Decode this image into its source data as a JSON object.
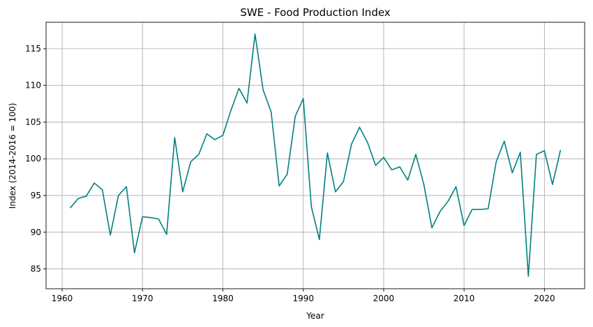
{
  "chart_data": {
    "type": "line",
    "title": "SWE - Food Production Index",
    "xlabel": "Year",
    "ylabel": "Index (2014-2016 = 100)",
    "xlim": [
      1958,
      2025
    ],
    "ylim": [
      82.3,
      118.6
    ],
    "xticks": [
      1960,
      1970,
      1980,
      1990,
      2000,
      2010,
      2020
    ],
    "yticks": [
      85,
      90,
      95,
      100,
      105,
      110,
      115
    ],
    "grid": true,
    "line_color": "#008080",
    "series": [
      {
        "x": [
          1961,
          1962,
          1963,
          1964,
          1965,
          1966,
          1967,
          1968,
          1969,
          1970,
          1971,
          1972,
          1973,
          1974,
          1975,
          1976,
          1977,
          1978,
          1979,
          1980,
          1981,
          1982,
          1983,
          1984,
          1985,
          1986,
          1987,
          1988,
          1989,
          1990,
          1991,
          1992,
          1993,
          1994,
          1995,
          1996,
          1997,
          1998,
          1999,
          2000,
          2001,
          2002,
          2003,
          2004,
          2005,
          2006,
          2007,
          2008,
          2009,
          2010,
          2011,
          2012,
          2013,
          2014,
          2015,
          2016,
          2017,
          2018,
          2019,
          2020,
          2021,
          2022
        ],
        "values": [
          93.3,
          94.6,
          94.9,
          96.7,
          95.8,
          89.6,
          95.0,
          96.2,
          87.2,
          92.1,
          92.0,
          91.8,
          89.7,
          102.9,
          95.5,
          99.6,
          100.6,
          103.4,
          102.6,
          103.2,
          106.6,
          109.6,
          107.6,
          117.0,
          109.4,
          106.4,
          96.3,
          97.9,
          105.8,
          108.2,
          93.5,
          89.0,
          100.8,
          95.5,
          96.9,
          102.0,
          104.3,
          102.2,
          99.1,
          100.2,
          98.5,
          98.9,
          97.1,
          100.6,
          96.5,
          90.6,
          92.8,
          94.2,
          96.2,
          90.9,
          93.1,
          93.1,
          93.2,
          99.6,
          102.4,
          98.1,
          100.9,
          84.0,
          100.6,
          101.1,
          96.5,
          101.2
        ]
      }
    ]
  }
}
